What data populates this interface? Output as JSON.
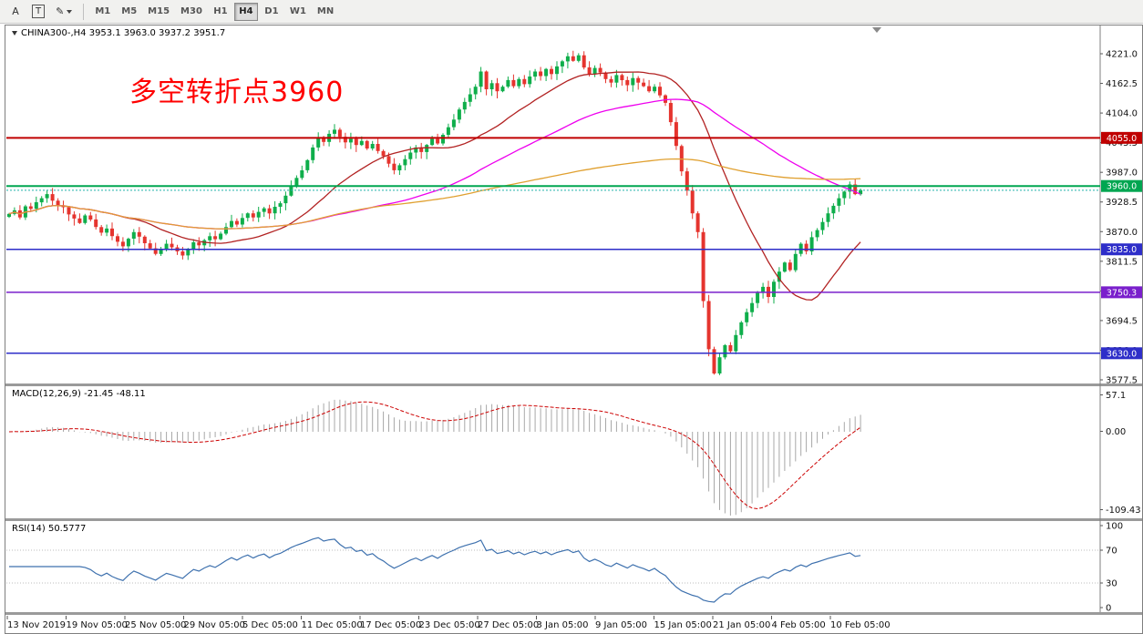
{
  "toolbar": {
    "tools": [
      {
        "name": "arrow-tool",
        "label": "A"
      },
      {
        "name": "text-label-tool",
        "label": "T"
      },
      {
        "name": "drawing-tool",
        "label": "✎"
      }
    ],
    "timeframes": [
      "M1",
      "M5",
      "M15",
      "M30",
      "H1",
      "H4",
      "D1",
      "W1",
      "MN"
    ],
    "active_timeframe": "H4"
  },
  "chart": {
    "title": "CHINA300-,H4 3953.1 3963.0 3937.2 3951.7",
    "symbol": "CHINA300-",
    "timeframe": "H4",
    "ohlc": {
      "open": "3953.1",
      "high": "3963.0",
      "low": "3937.2",
      "close": "3951.7"
    },
    "annotation": {
      "text": "多空转折点3960",
      "color": "#FF0000"
    }
  },
  "chart_data": {
    "type": "candlestick",
    "title": "CHINA300- H4",
    "x_labels": [
      "13 Nov 2019",
      "19 Nov 05:00",
      "25 Nov 05:00",
      "29 Nov 05:00",
      "5 Dec 05:00",
      "11 Dec 05:00",
      "17 Dec 05:00",
      "23 Dec 05:00",
      "27 Dec 05:00",
      "3 Jan 05:00",
      "9 Jan 05:00",
      "15 Jan 05:00",
      "21 Jan 05:00",
      "4 Feb 05:00",
      "10 Feb 05:00"
    ],
    "price_axis": {
      "min": 3577.5,
      "max": 4221.0,
      "ticks": [
        "4221.0",
        "4162.5",
        "4104.0",
        "4045.5",
        "3987.0",
        "3928.5",
        "3870.0",
        "3811.5",
        "3753.0",
        "3694.5",
        "3636.0",
        "3577.5"
      ]
    },
    "candle_colors": {
      "up": "#0FAE4B",
      "down": "#E5342E"
    },
    "closes": [
      3905,
      3912,
      3898,
      3920,
      3915,
      3928,
      3936,
      3944,
      3931,
      3922,
      3918,
      3904,
      3896,
      3887,
      3902,
      3894,
      3879,
      3868,
      3876,
      3861,
      3850,
      3841,
      3856,
      3869,
      3860,
      3847,
      3837,
      3826,
      3836,
      3846,
      3839,
      3831,
      3823,
      3836,
      3849,
      3843,
      3853,
      3861,
      3855,
      3866,
      3879,
      3891,
      3884,
      3897,
      3906,
      3898,
      3909,
      3916,
      3906,
      3919,
      3926,
      3941,
      3959,
      3976,
      3991,
      4011,
      4036,
      4056,
      4047,
      4063,
      4071,
      4057,
      4046,
      4053,
      4041,
      4049,
      4034,
      4043,
      4029,
      4019,
      4004,
      3991,
      4001,
      4013,
      4026,
      4036,
      4027,
      4041,
      4053,
      4044,
      4061,
      4076,
      4091,
      4111,
      4126,
      4141,
      4156,
      4186,
      4151,
      4163,
      4147,
      4156,
      4169,
      4157,
      4171,
      4161,
      4176,
      4186,
      4177,
      4191,
      4181,
      4196,
      4206,
      4216,
      4207,
      4218,
      4194,
      4181,
      4193,
      4184,
      4171,
      4164,
      4179,
      4169,
      4159,
      4173,
      4164,
      4157,
      4147,
      4156,
      4139,
      4124,
      4086,
      4039,
      3989,
      3951,
      3906,
      3869,
      3733,
      3638,
      3590,
      3622,
      3646,
      3634,
      3666,
      3691,
      3711,
      3729,
      3749,
      3761,
      3741,
      3771,
      3791,
      3809,
      3794,
      3826,
      3846,
      3831,
      3859,
      3873,
      3889,
      3906,
      3921,
      3936,
      3949,
      3963,
      3944,
      3952
    ],
    "ma": [
      {
        "name": "ma-fast",
        "period": 21,
        "color": "#B22222"
      },
      {
        "name": "ma-mid",
        "period": 55,
        "color": "#EE00EE"
      },
      {
        "name": "ma-slow",
        "period": 144,
        "color": "#E0A030"
      }
    ],
    "hlines": [
      {
        "price": 4055.0,
        "label": "4055.0",
        "color": "#C00000",
        "badge": "#C00000",
        "width": 2
      },
      {
        "price": 3960.0,
        "label": "3960.0",
        "color": "#00A651",
        "badge": "#00A651",
        "width": 2
      },
      {
        "price": 3835.0,
        "label": "3835.0",
        "color": "#2E2EC9",
        "badge": "#2E2EC9",
        "width": 1.5
      },
      {
        "price": 3750.3,
        "label": "3750.3",
        "color": "#7A1FCC",
        "badge": "#7A1FCC",
        "width": 1.5
      },
      {
        "price": 3630.0,
        "label": "3630.0",
        "color": "#2E2EC9",
        "badge": "#2E2EC9",
        "width": 1.5
      }
    ],
    "bid_line": {
      "price": 3951.7,
      "color": "#20B2AA"
    },
    "macd": {
      "label": "MACD(12,26,9) -21.45 -48.11",
      "fast": 12,
      "slow": 26,
      "signal": 9,
      "axis": {
        "max": "57.1",
        "zero": "0.00",
        "min": "-109.43"
      },
      "hist_color": "#A8A8A8",
      "signal_color": "#CC0000"
    },
    "rsi": {
      "label": "RSI(14) 50.5777",
      "period": 14,
      "axis": [
        "100",
        "70",
        "30",
        "0"
      ],
      "levels": [
        70,
        30
      ],
      "color": "#3E71AE"
    }
  }
}
